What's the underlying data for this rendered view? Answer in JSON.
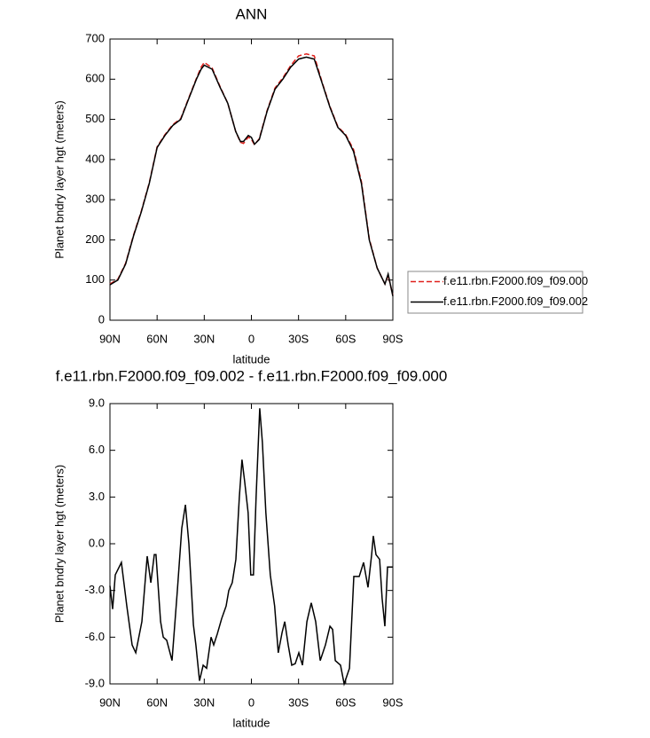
{
  "chart_data": [
    {
      "type": "line",
      "title": "ANN",
      "x_label": "latitude",
      "y_label": "Planet bndry layer hgt (meters)",
      "x": [
        90,
        85,
        80,
        75,
        70,
        65,
        60,
        55,
        50,
        45,
        40,
        35,
        32,
        30,
        25,
        20,
        15,
        10,
        7,
        5,
        2,
        0,
        -2,
        -5,
        -10,
        -15,
        -20,
        -25,
        -30,
        -35,
        -40,
        -45,
        -50,
        -55,
        -60,
        -65,
        -70,
        -75,
        -80,
        -85,
        -87,
        -90
      ],
      "series": [
        {
          "name": "f.e11.rbn.F2000.f09_f09.000",
          "color": "#e0201b",
          "line_style": "dashed",
          "values": [
            90,
            102,
            142,
            212,
            272,
            342,
            432,
            462,
            487,
            502,
            552,
            602,
            630,
            642,
            628,
            582,
            540,
            470,
            443,
            440,
            456,
            450,
            437,
            452,
            522,
            578,
            603,
            634,
            658,
            663,
            658,
            592,
            532,
            482,
            462,
            425,
            345,
            203,
            130,
            90,
            112,
            62
          ]
        },
        {
          "name": "f.e11.rbn.F2000.f09_f09.002",
          "color": "#000000",
          "line_style": "solid",
          "values": [
            88,
            100,
            140,
            210,
            270,
            340,
            430,
            460,
            485,
            500,
            550,
            600,
            625,
            635,
            625,
            580,
            540,
            470,
            445,
            445,
            460,
            455,
            438,
            450,
            520,
            575,
            600,
            630,
            650,
            655,
            650,
            590,
            530,
            480,
            460,
            420,
            340,
            200,
            130,
            90,
            115,
            60
          ]
        }
      ],
      "xlim": [
        90,
        -90
      ],
      "xticks": [
        {
          "value": 90,
          "label": "90N"
        },
        {
          "value": 60,
          "label": "60N"
        },
        {
          "value": 30,
          "label": "30N"
        },
        0,
        {
          "value": -30,
          "label": "30S"
        },
        {
          "value": -60,
          "label": "60S"
        },
        {
          "value": -90,
          "label": "90S"
        }
      ],
      "ylim": [
        0,
        700
      ],
      "yticks": [
        0,
        100,
        200,
        300,
        400,
        500,
        600,
        700
      ],
      "legend": "right"
    },
    {
      "type": "line",
      "title": "f.e11.rbn.F2000.f09_f09.002 - f.e11.rbn.F2000.f09_f09.000",
      "x_label": "latitude",
      "y_label": "Planet bndry layer hgt (meters)",
      "x": [
        90,
        88.3,
        86.6,
        82.7,
        79.3,
        75.9,
        73.6,
        69.7,
        66.3,
        64.0,
        61.8,
        60.7,
        57.8,
        56.1,
        53.9,
        50.5,
        47.1,
        44.3,
        42.0,
        39.8,
        36.9,
        35.3,
        33.0,
        30.7,
        28.5,
        25.7,
        24.0,
        21.7,
        18.9,
        16.1,
        14.4,
        12.2,
        9.9,
        7.7,
        6.0,
        4.3,
        2.1,
        0.4,
        -1.3,
        -3.0,
        -5.3,
        -7.0,
        -9.2,
        -12.0,
        -14.8,
        -17.1,
        -19.5,
        -21.2,
        -23.4,
        -25.7,
        -27.9,
        -30.2,
        -32.5,
        -35.3,
        -38.1,
        -40.9,
        -43.8,
        -47.1,
        -50.0,
        -51.7,
        -53.4,
        -56.7,
        -59.0,
        -62.4,
        -65.2,
        -68.6,
        -71.4,
        -74.2,
        -76.5,
        -77.6,
        -79.3,
        -81.6,
        -83.2,
        -84.9,
        -86.6,
        -90
      ],
      "values": [
        -2.7,
        -4.2,
        -2,
        -1.2,
        -4,
        -6.5,
        -7,
        -5,
        -0.8,
        -2.5,
        -0.7,
        -0.7,
        -5,
        -6,
        -6.2,
        -7.5,
        -3,
        1,
        2.5,
        0,
        -5.2,
        -6.5,
        -8.8,
        -7.8,
        -8,
        -6,
        -6.5,
        -5.8,
        -4.8,
        -4,
        -3,
        -2.5,
        -1,
        3,
        5.4,
        4,
        2,
        -2,
        -2,
        3,
        8.7,
        6.5,
        2,
        -2,
        -4,
        -7,
        -5.7,
        -5,
        -6.5,
        -7.8,
        -7.7,
        -7,
        -7.8,
        -5,
        -3.8,
        -5,
        -7.5,
        -6.5,
        -5.3,
        -5.5,
        -7.5,
        -7.8,
        -9,
        -8,
        -2.1,
        -2.1,
        -1.2,
        -2.8,
        -0.7,
        0.5,
        -0.7,
        -1,
        -3.5,
        -5.3,
        -1.5,
        -1.5
      ],
      "color": "#000000",
      "xlim": [
        90,
        -90
      ],
      "xticks": [
        {
          "value": 90,
          "label": "90N"
        },
        {
          "value": 60,
          "label": "60N"
        },
        {
          "value": 30,
          "label": "30N"
        },
        0,
        {
          "value": -30,
          "label": "30S"
        },
        {
          "value": -60,
          "label": "60S"
        },
        {
          "value": -90,
          "label": "90S"
        }
      ],
      "ylim": [
        -9,
        9
      ],
      "yticks": [
        {
          "value": -9,
          "label": "-9.0"
        },
        {
          "value": -6,
          "label": "-6.0"
        },
        {
          "value": -3,
          "label": "-3.0"
        },
        {
          "value": 0,
          "label": "0.0"
        },
        {
          "value": 3,
          "label": "3.0"
        },
        {
          "value": 6,
          "label": "6.0"
        },
        {
          "value": 9,
          "label": "9.0"
        }
      ]
    }
  ]
}
